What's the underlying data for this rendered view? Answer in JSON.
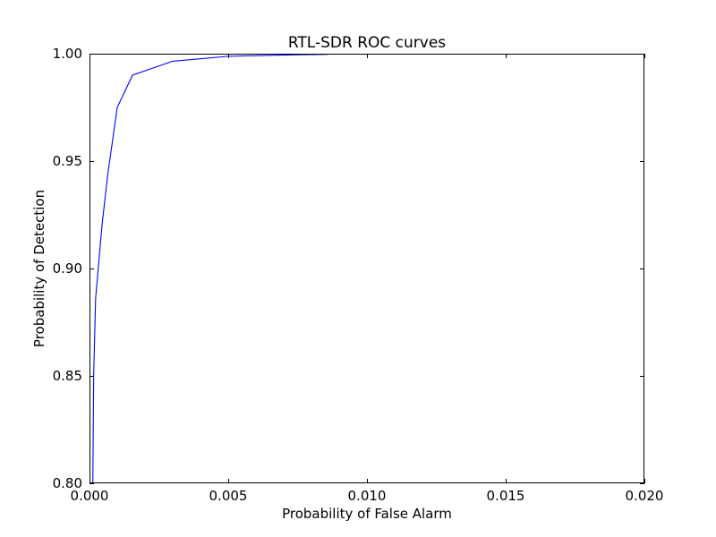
{
  "chart_data": {
    "type": "line",
    "title": "RTL-SDR ROC curves",
    "xlabel": "Probability of False Alarm",
    "ylabel": "Probability of Detection",
    "xlim": [
      0.0,
      0.02
    ],
    "ylim": [
      0.8,
      1.0
    ],
    "xticks": [
      0.0,
      0.005,
      0.01,
      0.015,
      0.02
    ],
    "yticks": [
      0.8,
      0.85,
      0.9,
      0.95,
      1.0
    ],
    "xtick_labels": [
      "0.000",
      "0.005",
      "0.010",
      "0.015",
      "0.020"
    ],
    "ytick_labels": [
      "0.80",
      "0.85",
      "0.90",
      "0.95",
      "1.00"
    ],
    "grid": false,
    "series": [
      {
        "color": "#0000ff",
        "x": [
          0.00012,
          0.00015,
          0.00022,
          0.00045,
          0.00065,
          0.001,
          0.00155,
          0.003,
          0.005,
          0.0075,
          0.0086
        ],
        "y": [
          0.8,
          0.85,
          0.886,
          0.92,
          0.943,
          0.975,
          0.99,
          0.9965,
          0.9988,
          0.9995,
          0.9997
        ]
      }
    ]
  }
}
